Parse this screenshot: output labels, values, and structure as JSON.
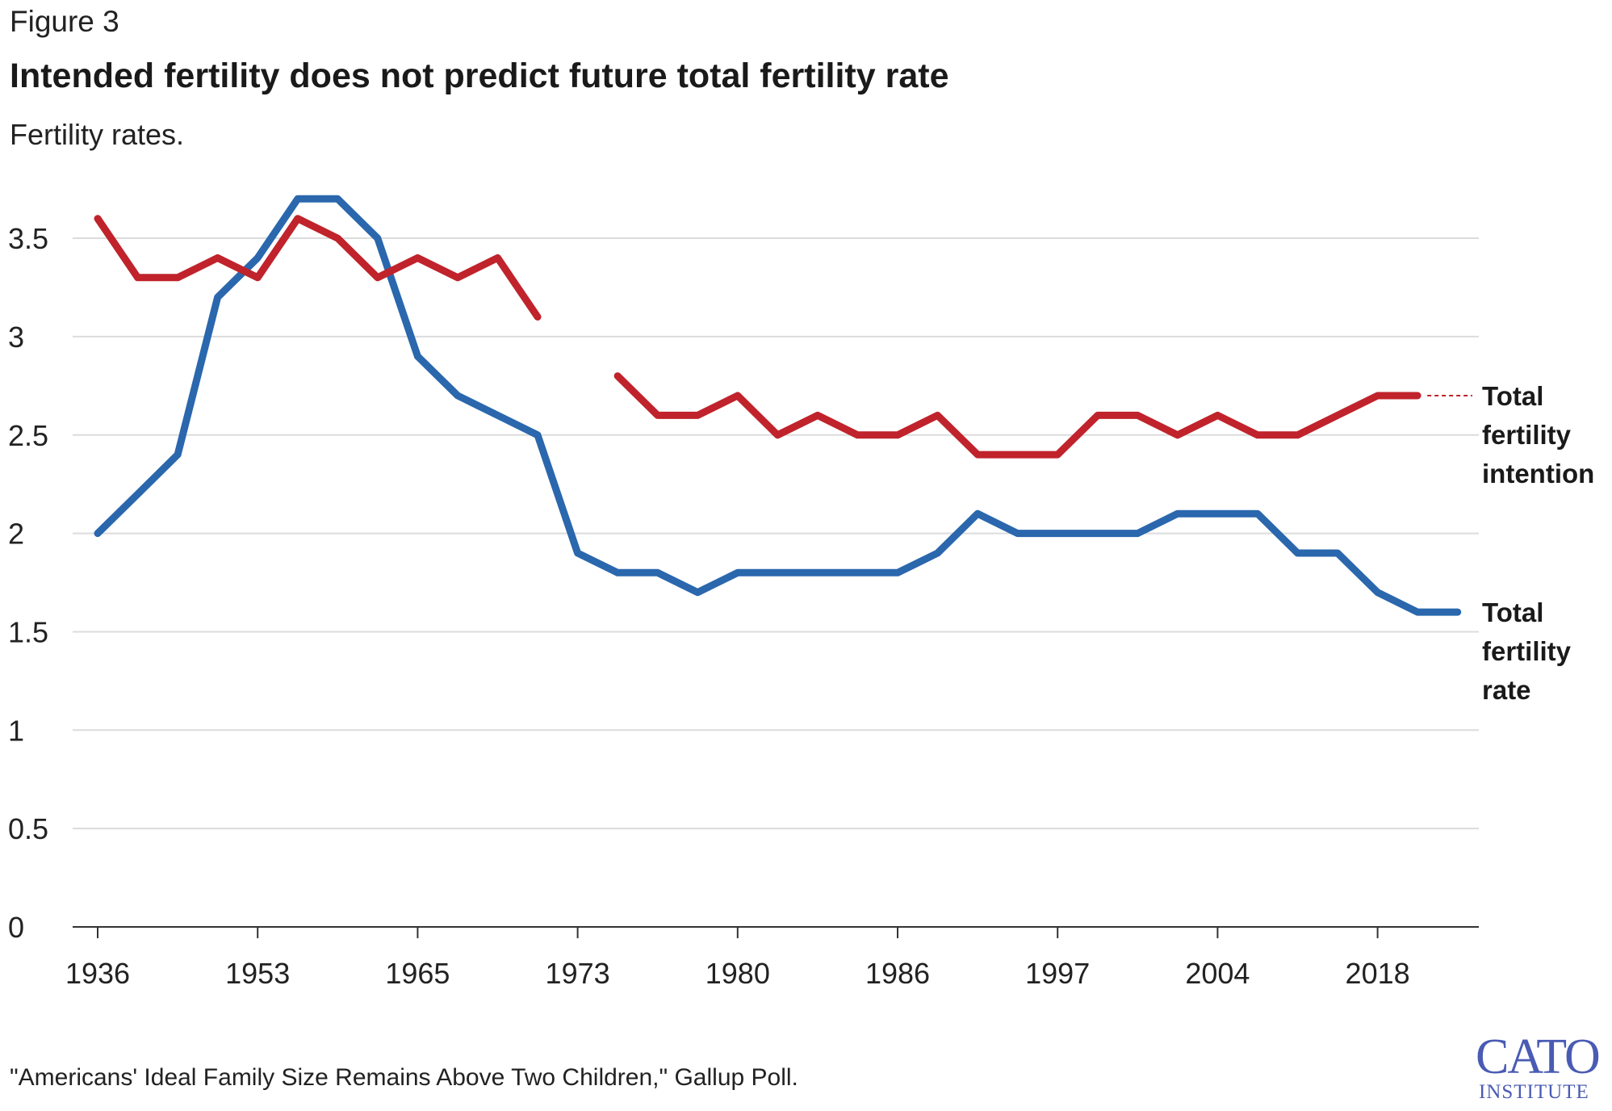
{
  "figure_label": "Figure 3",
  "source": "\"Americans' Ideal Family Size Remains Above Two Children,\" Gallup Poll.",
  "logo": {
    "main": "CATO",
    "sub": "INSTITUTE"
  },
  "chart_data": {
    "type": "line",
    "title": "Intended fertility does not predict future total fertility rate",
    "subtitle": "Fertility rates.",
    "xlabel": "",
    "ylabel": "",
    "ylim": [
      0,
      3.5
    ],
    "yticks": [
      0,
      0.5,
      1,
      1.5,
      2,
      2.5,
      3,
      3.5
    ],
    "ytick_labels": [
      "0",
      "0.5",
      "1",
      "1.5",
      "2",
      "2.5",
      "3",
      "3.5"
    ],
    "xtick_labels": [
      "1936",
      "1953",
      "1965",
      "1973",
      "1980",
      "1986",
      "1997",
      "2004",
      "2018"
    ],
    "grid": true,
    "series": [
      {
        "name": "Total fertility intention",
        "label_lines": [
          "Total",
          "fertility",
          "intention"
        ],
        "color": "#c0232b",
        "values": [
          3.6,
          3.3,
          3.3,
          3.4,
          3.3,
          3.6,
          3.5,
          3.3,
          3.4,
          3.3,
          3.4,
          3.1,
          null,
          2.8,
          2.6,
          2.6,
          2.7,
          2.5,
          2.6,
          2.5,
          2.5,
          2.6,
          2.4,
          2.4,
          2.4,
          2.6,
          2.6,
          2.5,
          2.6,
          2.5,
          2.5,
          2.6,
          2.7,
          2.7,
          null
        ]
      },
      {
        "name": "Total fertility rate",
        "label_lines": [
          "Total",
          "fertility",
          "rate"
        ],
        "color": "#2a67ad",
        "values": [
          2.0,
          2.2,
          2.4,
          3.2,
          3.4,
          3.7,
          3.7,
          3.5,
          2.9,
          2.7,
          2.6,
          2.5,
          1.9,
          1.8,
          1.8,
          1.7,
          1.8,
          1.8,
          1.8,
          1.8,
          1.8,
          1.9,
          2.1,
          2.0,
          2.0,
          2.0,
          2.0,
          2.1,
          2.1,
          2.1,
          1.9,
          1.9,
          1.7,
          1.6,
          1.6
        ]
      }
    ]
  }
}
